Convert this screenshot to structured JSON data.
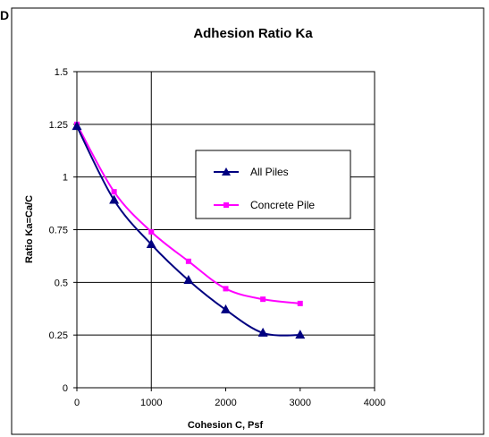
{
  "corner_label": "D",
  "chart_data": {
    "type": "line",
    "title": "Adhesion Ratio Ka",
    "xlabel": "Cohesion C, Psf",
    "ylabel": "Ratio Ka=Ca/C",
    "xlim": [
      0,
      4000
    ],
    "ylim": [
      0,
      1.5
    ],
    "x_ticks": [
      "0",
      "1000",
      "2000",
      "3000",
      "4000"
    ],
    "y_ticks": [
      "0",
      "0.25",
      "0.5",
      "0.75",
      "1",
      "1.25",
      "1.5"
    ],
    "x_tick_values": [
      0,
      1000,
      2000,
      3000,
      4000
    ],
    "y_tick_values": [
      0,
      0.25,
      0.5,
      0.75,
      1,
      1.25,
      1.5
    ],
    "grid": {
      "horizontal": true,
      "vertical_at": [
        1000
      ]
    },
    "legend_position": "center-right",
    "series": [
      {
        "name": "All Piles",
        "color": "#000080",
        "marker": "triangle",
        "x": [
          0,
          500,
          1000,
          1500,
          2000,
          2500,
          3000
        ],
        "y": [
          1.24,
          0.89,
          0.68,
          0.51,
          0.37,
          0.26,
          0.25
        ]
      },
      {
        "name": "Concrete Pile",
        "color": "#ff00ff",
        "marker": "square",
        "x": [
          0,
          500,
          1000,
          1500,
          2000,
          2500,
          3000
        ],
        "y": [
          1.25,
          0.93,
          0.74,
          0.6,
          0.47,
          0.42,
          0.4
        ]
      }
    ]
  }
}
